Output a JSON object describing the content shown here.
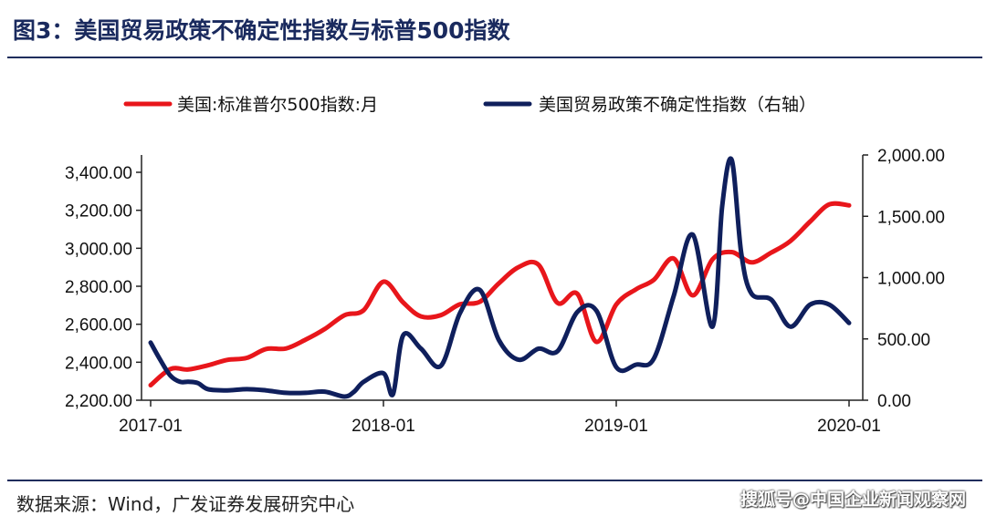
{
  "title": "图3：美国贸易政策不确定性指数与标普500指数",
  "source": "数据来源：Wind，广发证券发展研究中心",
  "watermark": "搜狐号@中国企业新闻观察网",
  "colors": {
    "sp500": "#e8161b",
    "tpu": "#0f1f5c",
    "rule": "#1f2d5c"
  },
  "chart_data": {
    "type": "line",
    "x_ticks": [
      "2017-01",
      "2018-01",
      "2019-01",
      "2020-01"
    ],
    "y_left": {
      "min": 2200,
      "max": 3400,
      "ticks": [
        "2,200.00",
        "2,400.00",
        "2,600.00",
        "2,800.00",
        "3,000.00",
        "3,200.00",
        "3,400.00"
      ]
    },
    "y_right": {
      "min": 0,
      "max": 2000,
      "ticks": [
        "0.00",
        "500.00",
        "1,000.00",
        "1,500.00",
        "2,000.00"
      ]
    },
    "legend_position": "top",
    "series": [
      {
        "name": "美国:标准普尔500指数:月",
        "axis": "left",
        "color": "#e8161b",
        "x": [
          "2017-01",
          "2017-02",
          "2017-03",
          "2017-04",
          "2017-05",
          "2017-06",
          "2017-07",
          "2017-08",
          "2017-09",
          "2017-10",
          "2017-11",
          "2017-12",
          "2018-01",
          "2018-02",
          "2018-03",
          "2018-04",
          "2018-05",
          "2018-06",
          "2018-07",
          "2018-08",
          "2018-09",
          "2018-10",
          "2018-11",
          "2018-12",
          "2019-01",
          "2019-02",
          "2019-03",
          "2019-04",
          "2019-05",
          "2019-06",
          "2019-07",
          "2019-08",
          "2019-09",
          "2019-10",
          "2019-11",
          "2019-12",
          "2020-01"
        ],
        "values": [
          2279,
          2364,
          2362,
          2384,
          2412,
          2423,
          2470,
          2472,
          2519,
          2575,
          2648,
          2674,
          2824,
          2714,
          2641,
          2648,
          2705,
          2718,
          2816,
          2901,
          2914,
          2712,
          2760,
          2507,
          2704,
          2784,
          2834,
          2946,
          2752,
          2942,
          2980,
          2926,
          2977,
          3038,
          3141,
          3231,
          3226
        ]
      },
      {
        "name": "美国贸易政策不确定性指数（右轴）",
        "axis": "right",
        "color": "#0f1f5c",
        "x": [
          "2017-01",
          "2017-01-16",
          "2017-02",
          "2017-02-16",
          "2017-03",
          "2017-03-16",
          "2017-04",
          "2017-05",
          "2017-06",
          "2017-07",
          "2017-08",
          "2017-09",
          "2017-10",
          "2017-11",
          "2017-11-16",
          "2017-12",
          "2018-01",
          "2018-01-16",
          "2018-02",
          "2018-03",
          "2018-04",
          "2018-05",
          "2018-06",
          "2018-07",
          "2018-08",
          "2018-09",
          "2018-10",
          "2018-11",
          "2018-12",
          "2019-01",
          "2019-02",
          "2019-03",
          "2019-04",
          "2019-05",
          "2019-06",
          "2019-06-16",
          "2019-07",
          "2019-07-16",
          "2019-08",
          "2019-09",
          "2019-10",
          "2019-11",
          "2019-12",
          "2020-01"
        ],
        "values": [
          470,
          330,
          200,
          150,
          150,
          140,
          90,
          80,
          90,
          80,
          60,
          60,
          70,
          30,
          70,
          150,
          220,
          50,
          530,
          420,
          280,
          710,
          900,
          490,
          330,
          420,
          400,
          720,
          730,
          270,
          290,
          340,
          850,
          1350,
          600,
          1580,
          1960,
          1200,
          870,
          820,
          600,
          780,
          780,
          630
        ]
      }
    ]
  }
}
